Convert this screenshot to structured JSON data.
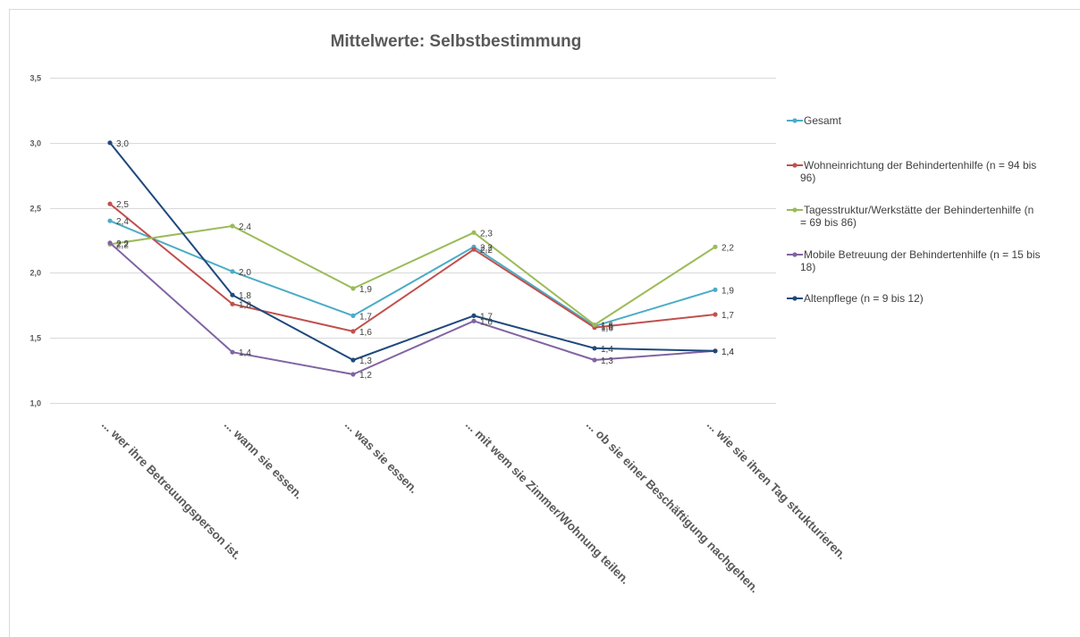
{
  "chart_data": {
    "type": "line",
    "title": "Mittelwerte: Selbstbestimmung",
    "xlabel": "",
    "ylabel": "",
    "ylim": [
      1.0,
      3.5
    ],
    "yticks": [
      "1,0",
      "1,5",
      "2,0",
      "2,5",
      "3,0",
      "3,5"
    ],
    "ytick_values": [
      1.0,
      1.5,
      2.0,
      2.5,
      3.0,
      3.5
    ],
    "grid": true,
    "legend_position": "right",
    "categories": [
      "... wer ihre Betreuungsperson ist.",
      "... wann sie essen.",
      "... was sie essen.",
      "... mit wem sie Zimmer/Wohnung teilen.",
      "... ob sie einer Beschäftigung nachgehen.",
      "... wie sie ihren Tag strukturieren."
    ],
    "series": [
      {
        "name": "Gesamt",
        "legend_lines": [
          "Gesamt"
        ],
        "color": "#4bacc6",
        "values": [
          2.4,
          2.01,
          1.67,
          2.2,
          1.59,
          1.87
        ],
        "labels": [
          "2,4",
          "2,0",
          "1,7",
          "2,2",
          "1,6",
          "1,9"
        ]
      },
      {
        "name": "Wohneinrichtung der Behindertenhilfe (n = 94 bis 96)",
        "legend_lines": [
          "Wohneinrichtung der Behindertenhilfe (n = 94 bis",
          "96)"
        ],
        "color": "#c0504d",
        "values": [
          2.53,
          1.76,
          1.55,
          2.18,
          1.58,
          1.68
        ],
        "labels": [
          "2,5",
          "1,8",
          "1,6",
          "2,2",
          "1,6",
          "1,7"
        ]
      },
      {
        "name": "Tagesstruktur/Werkstätte der Behindertenhilfe (n = 69 bis 86)",
        "legend_lines": [
          "Tagesstruktur/Werkstätte der Behindertenhilfe (n",
          "= 69 bis 86)"
        ],
        "color": "#9bbb59",
        "values": [
          2.22,
          2.36,
          1.88,
          2.31,
          1.6,
          2.2
        ],
        "labels": [
          "2,2",
          "2,4",
          "1,9",
          "2,3",
          "1,6",
          "2,2"
        ]
      },
      {
        "name": "Mobile Betreuung der Behindertenhilfe (n = 15 bis 18)",
        "legend_lines": [
          "Mobile Betreuung der Behindertenhilfe (n = 15 bis",
          "18)"
        ],
        "color": "#8064a2",
        "values": [
          2.23,
          1.39,
          1.22,
          1.63,
          1.33,
          1.4
        ],
        "labels": [
          "2,2",
          "1,4",
          "1,2",
          "1,6",
          "1,3",
          "1,4"
        ]
      },
      {
        "name": "Altenpflege (n = 9 bis 12)",
        "legend_lines": [
          "Altenpflege (n = 9 bis 12)"
        ],
        "color": "#1f497d",
        "values": [
          3.0,
          1.83,
          1.33,
          1.67,
          1.42,
          1.4
        ],
        "labels": [
          "3,0",
          "1,8",
          "1,3",
          "1,7",
          "1,4",
          "1,4"
        ]
      }
    ]
  }
}
